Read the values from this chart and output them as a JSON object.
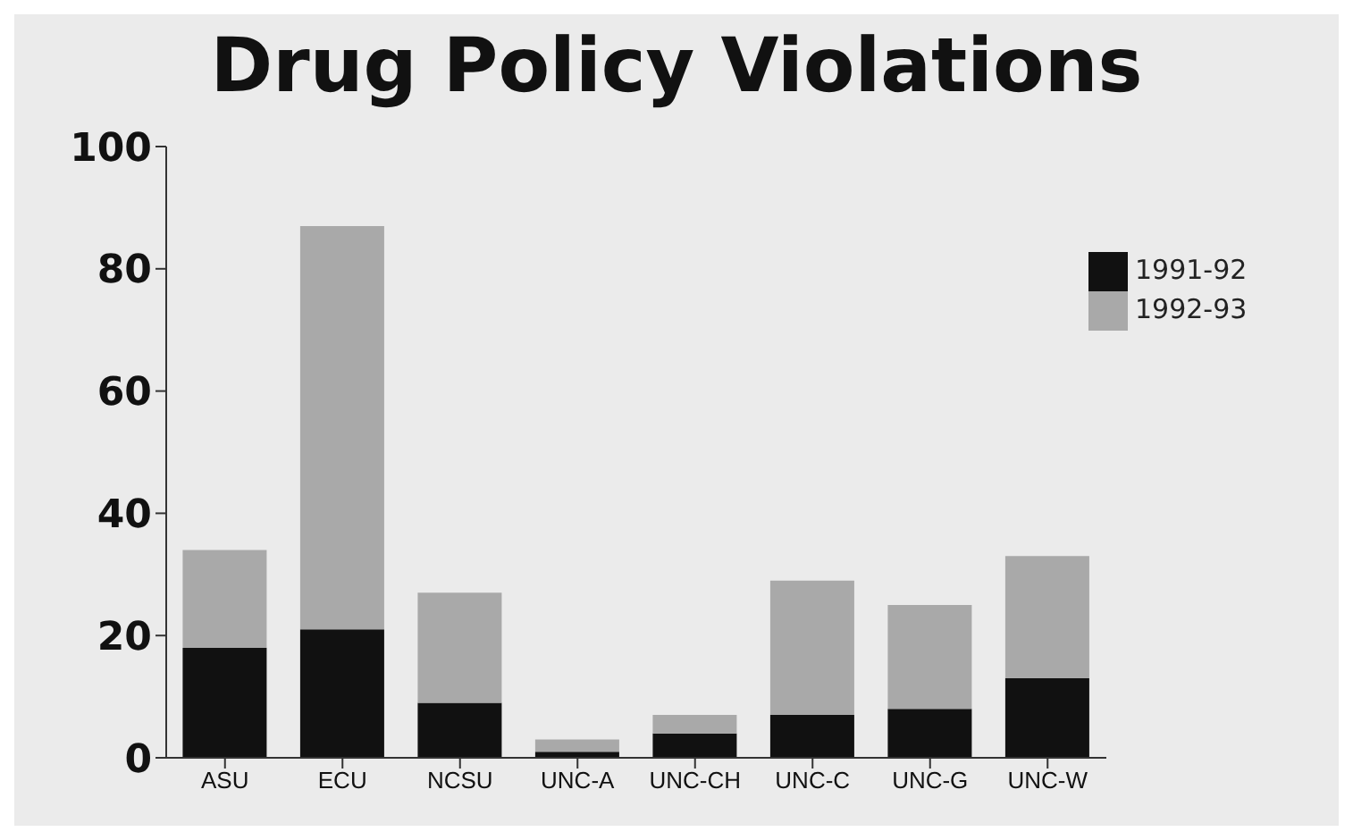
{
  "chart_data": {
    "type": "bar",
    "title": "Drug Policy Violations",
    "categories": [
      "ASU",
      "ECU",
      "NCSU",
      "UNC-A",
      "UNC-CH",
      "UNC-C",
      "UNC-G",
      "UNC-W"
    ],
    "stacked": true,
    "series": [
      {
        "name": "1991-92",
        "color": "#111111",
        "values": [
          18,
          21,
          9,
          1,
          4,
          7,
          8,
          13
        ]
      },
      {
        "name": "1992-93",
        "color": "#a9a9a9",
        "values": [
          16,
          66,
          18,
          2,
          3,
          22,
          17,
          20
        ]
      }
    ],
    "ylim": [
      0,
      100
    ],
    "yticks": [
      0,
      20,
      40,
      60,
      80,
      100
    ],
    "grid": false,
    "legend": "top right"
  }
}
